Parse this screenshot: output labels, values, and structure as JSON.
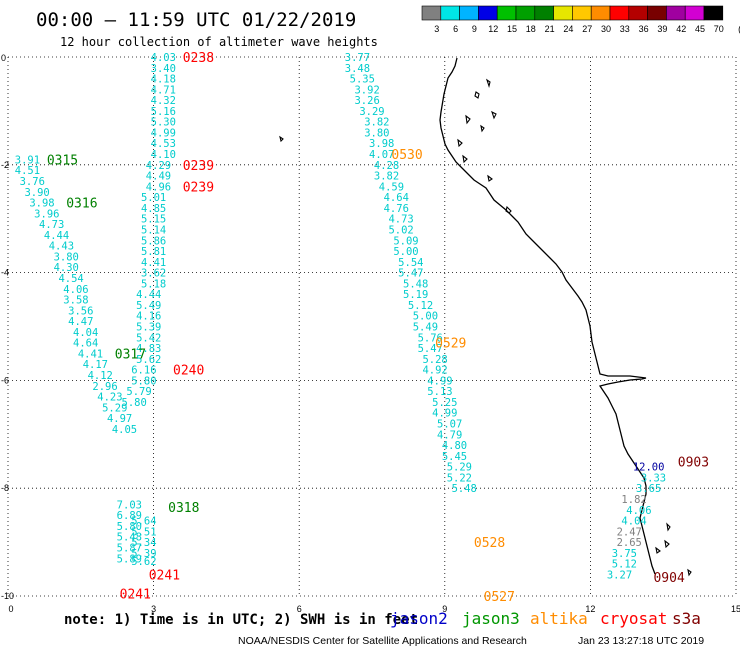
{
  "header": {
    "title": "00:00 – 11:59 UTC 01/22/2019",
    "subtitle": "12 hour collection of altimeter wave heights"
  },
  "colorbar": {
    "labels": [
      "3",
      "6",
      "9",
      "12",
      "15",
      "18",
      "21",
      "24",
      "27",
      "30",
      "33",
      "36",
      "39",
      "42",
      "45",
      "70",
      "(ft)"
    ],
    "colors": [
      "#808080",
      "#00e6e6",
      "#00b4ff",
      "#0000e6",
      "#00c000",
      "#00a000",
      "#008000",
      "#e6e600",
      "#ffc800",
      "#ff8c00",
      "#ff0000",
      "#b40000",
      "#780000",
      "#a000a0",
      "#d200d2",
      "#000000"
    ]
  },
  "colors": {
    "cyan": "#00cccc",
    "green": "#008000",
    "orange": "#ff8c00",
    "red": "#ff0000",
    "darkred": "#800000",
    "navy": "#0000a0",
    "gray": "#808080",
    "coast": "#000000",
    "grid": "#000000"
  },
  "chart_data": {
    "type": "scatter",
    "xlim": [
      0,
      15
    ],
    "ylim": [
      -10,
      0
    ],
    "x_ticks": [
      "0",
      "3",
      "6",
      "9",
      "12",
      "15"
    ],
    "y_ticks": [
      "0",
      "-2",
      "-4",
      "-6",
      "-8",
      "-10"
    ],
    "grid": "dotted",
    "tracks": [
      {
        "label": "0238",
        "color": "red",
        "points": [
          {
            "x": 3.2,
            "y": 0.0,
            "v": "4.03"
          },
          {
            "x": 3.2,
            "y": -0.2,
            "v": "3.40"
          },
          {
            "x": 3.2,
            "y": -0.4,
            "v": "4.18"
          },
          {
            "x": 3.2,
            "y": -0.6,
            "v": "4.71"
          },
          {
            "x": 3.2,
            "y": -0.8,
            "v": "4.32"
          },
          {
            "x": 3.2,
            "y": -1.0,
            "v": "5.16"
          },
          {
            "x": 3.2,
            "y": -1.2,
            "v": "5.30"
          },
          {
            "x": 3.2,
            "y": -1.4,
            "v": "4.99"
          },
          {
            "x": 3.2,
            "y": -1.6,
            "v": "4.53"
          }
        ]
      },
      {
        "label": "0239",
        "color": "red",
        "points": [
          {
            "x": 3.2,
            "y": -1.8,
            "v": "4.10"
          },
          {
            "x": 3.1,
            "y": -2.0,
            "v": "4.29"
          },
          {
            "x": 3.1,
            "y": -2.2,
            "v": "4.49"
          },
          {
            "x": 3.1,
            "y": -2.4,
            "v": "4.96"
          },
          {
            "x": 3.0,
            "y": -2.6,
            "v": "5.01"
          },
          {
            "x": 3.0,
            "y": -2.8,
            "v": "4.85"
          },
          {
            "x": 3.0,
            "y": -3.0,
            "v": "5.15"
          },
          {
            "x": 3.0,
            "y": -3.2,
            "v": "5.14"
          },
          {
            "x": 3.0,
            "y": -3.4,
            "v": "5.86"
          },
          {
            "x": 3.0,
            "y": -3.6,
            "v": "5.81"
          },
          {
            "x": 3.0,
            "y": -3.8,
            "v": "4.41"
          },
          {
            "x": 3.0,
            "y": -4.0,
            "v": "3.62"
          },
          {
            "x": 3.0,
            "y": -4.2,
            "v": "5.18"
          },
          {
            "x": 2.9,
            "y": -4.4,
            "v": "4.44"
          },
          {
            "x": 2.9,
            "y": -4.6,
            "v": "5.49"
          },
          {
            "x": 2.9,
            "y": -4.8,
            "v": "4.16"
          }
        ]
      },
      {
        "label": "0240",
        "color": "red",
        "points": [
          {
            "x": 2.9,
            "y": -5.0,
            "v": "5.39"
          },
          {
            "x": 2.9,
            "y": -5.2,
            "v": "5.42"
          },
          {
            "x": 2.9,
            "y": -5.4,
            "v": "4.83"
          },
          {
            "x": 2.9,
            "y": -5.6,
            "v": "5.62"
          },
          {
            "x": 2.8,
            "y": -5.8,
            "v": "6.16"
          },
          {
            "x": 2.8,
            "y": -6.0,
            "v": "5.80"
          },
          {
            "x": 2.7,
            "y": -6.2,
            "v": "5.79"
          },
          {
            "x": 2.6,
            "y": -6.4,
            "v": "5.80"
          }
        ]
      },
      {
        "label": "0241",
        "color": "red",
        "points": [
          {
            "x": 2.8,
            "y": -8.6,
            "v": "5.64"
          },
          {
            "x": 2.8,
            "y": -8.8,
            "v": "5.51"
          },
          {
            "x": 2.8,
            "y": -9.0,
            "v": "5.34"
          },
          {
            "x": 2.8,
            "y": -9.2,
            "v": "5.39"
          },
          {
            "x": 2.8,
            "y": -9.35,
            "v": "5.62"
          }
        ]
      },
      {
        "label": "0315",
        "color": "green",
        "points": [
          {
            "x": 0.4,
            "y": -1.9,
            "v": "3.91"
          },
          {
            "x": 0.4,
            "y": -2.1,
            "v": "4.51"
          },
          {
            "x": 0.5,
            "y": -2.3,
            "v": "3.76"
          },
          {
            "x": 0.6,
            "y": -2.5,
            "v": "3.90"
          },
          {
            "x": 0.7,
            "y": -2.7,
            "v": "3.98"
          }
        ]
      },
      {
        "label": "0316",
        "color": "green",
        "points": [
          {
            "x": 0.8,
            "y": -2.9,
            "v": "3.96"
          },
          {
            "x": 0.9,
            "y": -3.1,
            "v": "4.73"
          },
          {
            "x": 1.0,
            "y": -3.3,
            "v": "4.44"
          },
          {
            "x": 1.1,
            "y": -3.5,
            "v": "4.43"
          },
          {
            "x": 1.2,
            "y": -3.7,
            "v": "3.80"
          },
          {
            "x": 1.2,
            "y": -3.9,
            "v": "4.30"
          },
          {
            "x": 1.3,
            "y": -4.1,
            "v": "4.54"
          },
          {
            "x": 1.4,
            "y": -4.3,
            "v": "4.06"
          },
          {
            "x": 1.4,
            "y": -4.5,
            "v": "3.58"
          },
          {
            "x": 1.5,
            "y": -4.7,
            "v": "3.56"
          },
          {
            "x": 1.5,
            "y": -4.9,
            "v": "4.47"
          },
          {
            "x": 1.6,
            "y": -5.1,
            "v": "4.04"
          },
          {
            "x": 1.6,
            "y": -5.3,
            "v": "4.64"
          }
        ]
      },
      {
        "label": "0317",
        "color": "green",
        "points": [
          {
            "x": 1.7,
            "y": -5.5,
            "v": "4.41"
          },
          {
            "x": 1.8,
            "y": -5.7,
            "v": "4.17"
          },
          {
            "x": 1.9,
            "y": -5.9,
            "v": "4.12"
          },
          {
            "x": 2.0,
            "y": -6.1,
            "v": "2.96"
          },
          {
            "x": 2.1,
            "y": -6.3,
            "v": "4.23"
          },
          {
            "x": 2.2,
            "y": -6.5,
            "v": "5.29"
          },
          {
            "x": 2.3,
            "y": -6.7,
            "v": "4.97"
          },
          {
            "x": 2.4,
            "y": -6.9,
            "v": "4.05"
          }
        ]
      },
      {
        "label": "0318",
        "color": "green",
        "points": [
          {
            "x": 2.5,
            "y": -8.3,
            "v": "7.03"
          },
          {
            "x": 2.5,
            "y": -8.5,
            "v": "6.89"
          },
          {
            "x": 2.5,
            "y": -8.7,
            "v": "5.80"
          },
          {
            "x": 2.5,
            "y": -8.9,
            "v": "5.48"
          },
          {
            "x": 2.5,
            "y": -9.1,
            "v": "5.87"
          },
          {
            "x": 2.5,
            "y": -9.3,
            "v": "5.89"
          }
        ]
      },
      {
        "label": "0530",
        "color": "orange",
        "points": [
          {
            "x": 7.2,
            "y": 0.0,
            "v": "3.77"
          },
          {
            "x": 7.2,
            "y": -0.2,
            "v": "3.48"
          },
          {
            "x": 7.3,
            "y": -0.4,
            "v": "5.35"
          },
          {
            "x": 7.4,
            "y": -0.6,
            "v": "3.92"
          },
          {
            "x": 7.4,
            "y": -0.8,
            "v": "3.26"
          },
          {
            "x": 7.5,
            "y": -1.0,
            "v": "3.29"
          },
          {
            "x": 7.6,
            "y": -1.2,
            "v": "3.82"
          },
          {
            "x": 7.6,
            "y": -1.4,
            "v": "3.80"
          },
          {
            "x": 7.7,
            "y": -1.6,
            "v": "3.98"
          },
          {
            "x": 7.7,
            "y": -1.8,
            "v": "4.07"
          },
          {
            "x": 7.8,
            "y": -2.0,
            "v": "4.28"
          },
          {
            "x": 7.8,
            "y": -2.2,
            "v": "3.82"
          },
          {
            "x": 7.9,
            "y": -2.4,
            "v": "4.59"
          },
          {
            "x": 8.0,
            "y": -2.6,
            "v": "4.64"
          },
          {
            "x": 8.0,
            "y": -2.8,
            "v": "4.76"
          },
          {
            "x": 8.1,
            "y": -3.0,
            "v": "4.73"
          }
        ]
      },
      {
        "label": "0529",
        "color": "orange",
        "points": [
          {
            "x": 8.1,
            "y": -3.2,
            "v": "5.02"
          },
          {
            "x": 8.2,
            "y": -3.4,
            "v": "5.09"
          },
          {
            "x": 8.2,
            "y": -3.6,
            "v": "5.00"
          },
          {
            "x": 8.3,
            "y": -3.8,
            "v": "5.54"
          },
          {
            "x": 8.3,
            "y": -4.0,
            "v": "5.47"
          },
          {
            "x": 8.4,
            "y": -4.2,
            "v": "5.48"
          },
          {
            "x": 8.4,
            "y": -4.4,
            "v": "5.19"
          },
          {
            "x": 8.5,
            "y": -4.6,
            "v": "5.12"
          },
          {
            "x": 8.6,
            "y": -4.8,
            "v": "5.00"
          },
          {
            "x": 8.6,
            "y": -5.0,
            "v": "5.49"
          },
          {
            "x": 8.7,
            "y": -5.2,
            "v": "5.76"
          },
          {
            "x": 8.7,
            "y": -5.4,
            "v": "5.47"
          },
          {
            "x": 8.8,
            "y": -5.6,
            "v": "5.28"
          },
          {
            "x": 8.8,
            "y": -5.8,
            "v": "4.92"
          }
        ]
      },
      {
        "label": "0528",
        "color": "orange",
        "points": [
          {
            "x": 8.9,
            "y": -6.0,
            "v": "4.99"
          },
          {
            "x": 8.9,
            "y": -6.2,
            "v": "5.13"
          },
          {
            "x": 9.0,
            "y": -6.4,
            "v": "5.25"
          },
          {
            "x": 9.0,
            "y": -6.6,
            "v": "4.99"
          },
          {
            "x": 9.1,
            "y": -6.8,
            "v": "5.07"
          },
          {
            "x": 9.1,
            "y": -7.0,
            "v": "4.79"
          },
          {
            "x": 9.2,
            "y": -7.2,
            "v": "4.80"
          }
        ]
      },
      {
        "label": "0527",
        "color": "orange",
        "points": [
          {
            "x": 9.2,
            "y": -7.4,
            "v": "5.45"
          },
          {
            "x": 9.3,
            "y": -7.6,
            "v": "5.29"
          },
          {
            "x": 9.3,
            "y": -7.8,
            "v": "5.22"
          },
          {
            "x": 9.4,
            "y": -8.0,
            "v": "5.48"
          }
        ]
      },
      {
        "label": "0903",
        "color": "darkred",
        "points": [
          {
            "x": 13.2,
            "y": -7.6,
            "v": "12.00",
            "c": "navy"
          },
          {
            "x": 13.3,
            "y": -7.8,
            "v": "3.33"
          },
          {
            "x": 13.2,
            "y": -8.0,
            "v": "3.65"
          },
          {
            "x": 12.9,
            "y": -8.2,
            "v": "1.82",
            "c": "gray"
          },
          {
            "x": 13.0,
            "y": -8.4,
            "v": "4.06"
          },
          {
            "x": 12.9,
            "y": -8.6,
            "v": "4.04"
          }
        ]
      },
      {
        "label": "0904",
        "color": "darkred",
        "points": [
          {
            "x": 12.8,
            "y": -8.8,
            "v": "2.47",
            "c": "gray"
          },
          {
            "x": 12.8,
            "y": -9.0,
            "v": "2.65",
            "c": "gray"
          },
          {
            "x": 12.7,
            "y": -9.2,
            "v": "3.75"
          },
          {
            "x": 12.7,
            "y": -9.4,
            "v": "5.12"
          },
          {
            "x": 12.6,
            "y": -9.6,
            "v": "3.27"
          }
        ]
      }
    ],
    "track_labels": [
      {
        "text": "0238",
        "x": 3.6,
        "y": 0.0,
        "color": "red"
      },
      {
        "text": "0239",
        "x": 3.6,
        "y": -2.0,
        "color": "red"
      },
      {
        "text": "0239",
        "x": 3.6,
        "y": -2.4,
        "color": "red"
      },
      {
        "text": "0240",
        "x": 3.4,
        "y": -5.8,
        "color": "red"
      },
      {
        "text": "0241",
        "x": 2.9,
        "y": -9.6,
        "color": "red"
      },
      {
        "text": "0241",
        "x": 2.3,
        "y": -9.95,
        "color": "red"
      },
      {
        "text": "0315",
        "x": 0.8,
        "y": -1.9,
        "color": "green"
      },
      {
        "text": "0316",
        "x": 1.2,
        "y": -2.7,
        "color": "green"
      },
      {
        "text": "0317",
        "x": 2.2,
        "y": -5.5,
        "color": "green"
      },
      {
        "text": "0318",
        "x": 3.3,
        "y": -8.35,
        "color": "green"
      },
      {
        "text": "0530",
        "x": 7.9,
        "y": -1.8,
        "color": "orange"
      },
      {
        "text": "0529",
        "x": 8.8,
        "y": -5.3,
        "color": "orange"
      },
      {
        "text": "0528",
        "x": 9.6,
        "y": -9.0,
        "color": "orange"
      },
      {
        "text": "0527",
        "x": 9.8,
        "y": -10.0,
        "color": "orange"
      },
      {
        "text": "0903",
        "x": 13.8,
        "y": -7.5,
        "color": "darkred"
      },
      {
        "text": "0904",
        "x": 13.3,
        "y": -9.65,
        "color": "darkred"
      }
    ]
  },
  "footer": {
    "note": "note: 1) Time is in UTC; 2) SWH is in feet",
    "legend": [
      {
        "name": "jason2",
        "color": "#0000c8"
      },
      {
        "name": "jason3",
        "color": "#009600"
      },
      {
        "name": "altika",
        "color": "#ff8c00"
      },
      {
        "name": "cryosat",
        "color": "#ff0000"
      },
      {
        "name": "s3a",
        "color": "#800000"
      }
    ],
    "credit": "NOAA/NESDIS Center for Satellite Applications and Research",
    "timestamp": "Jan 23 13:27:18 UTC 2019"
  }
}
